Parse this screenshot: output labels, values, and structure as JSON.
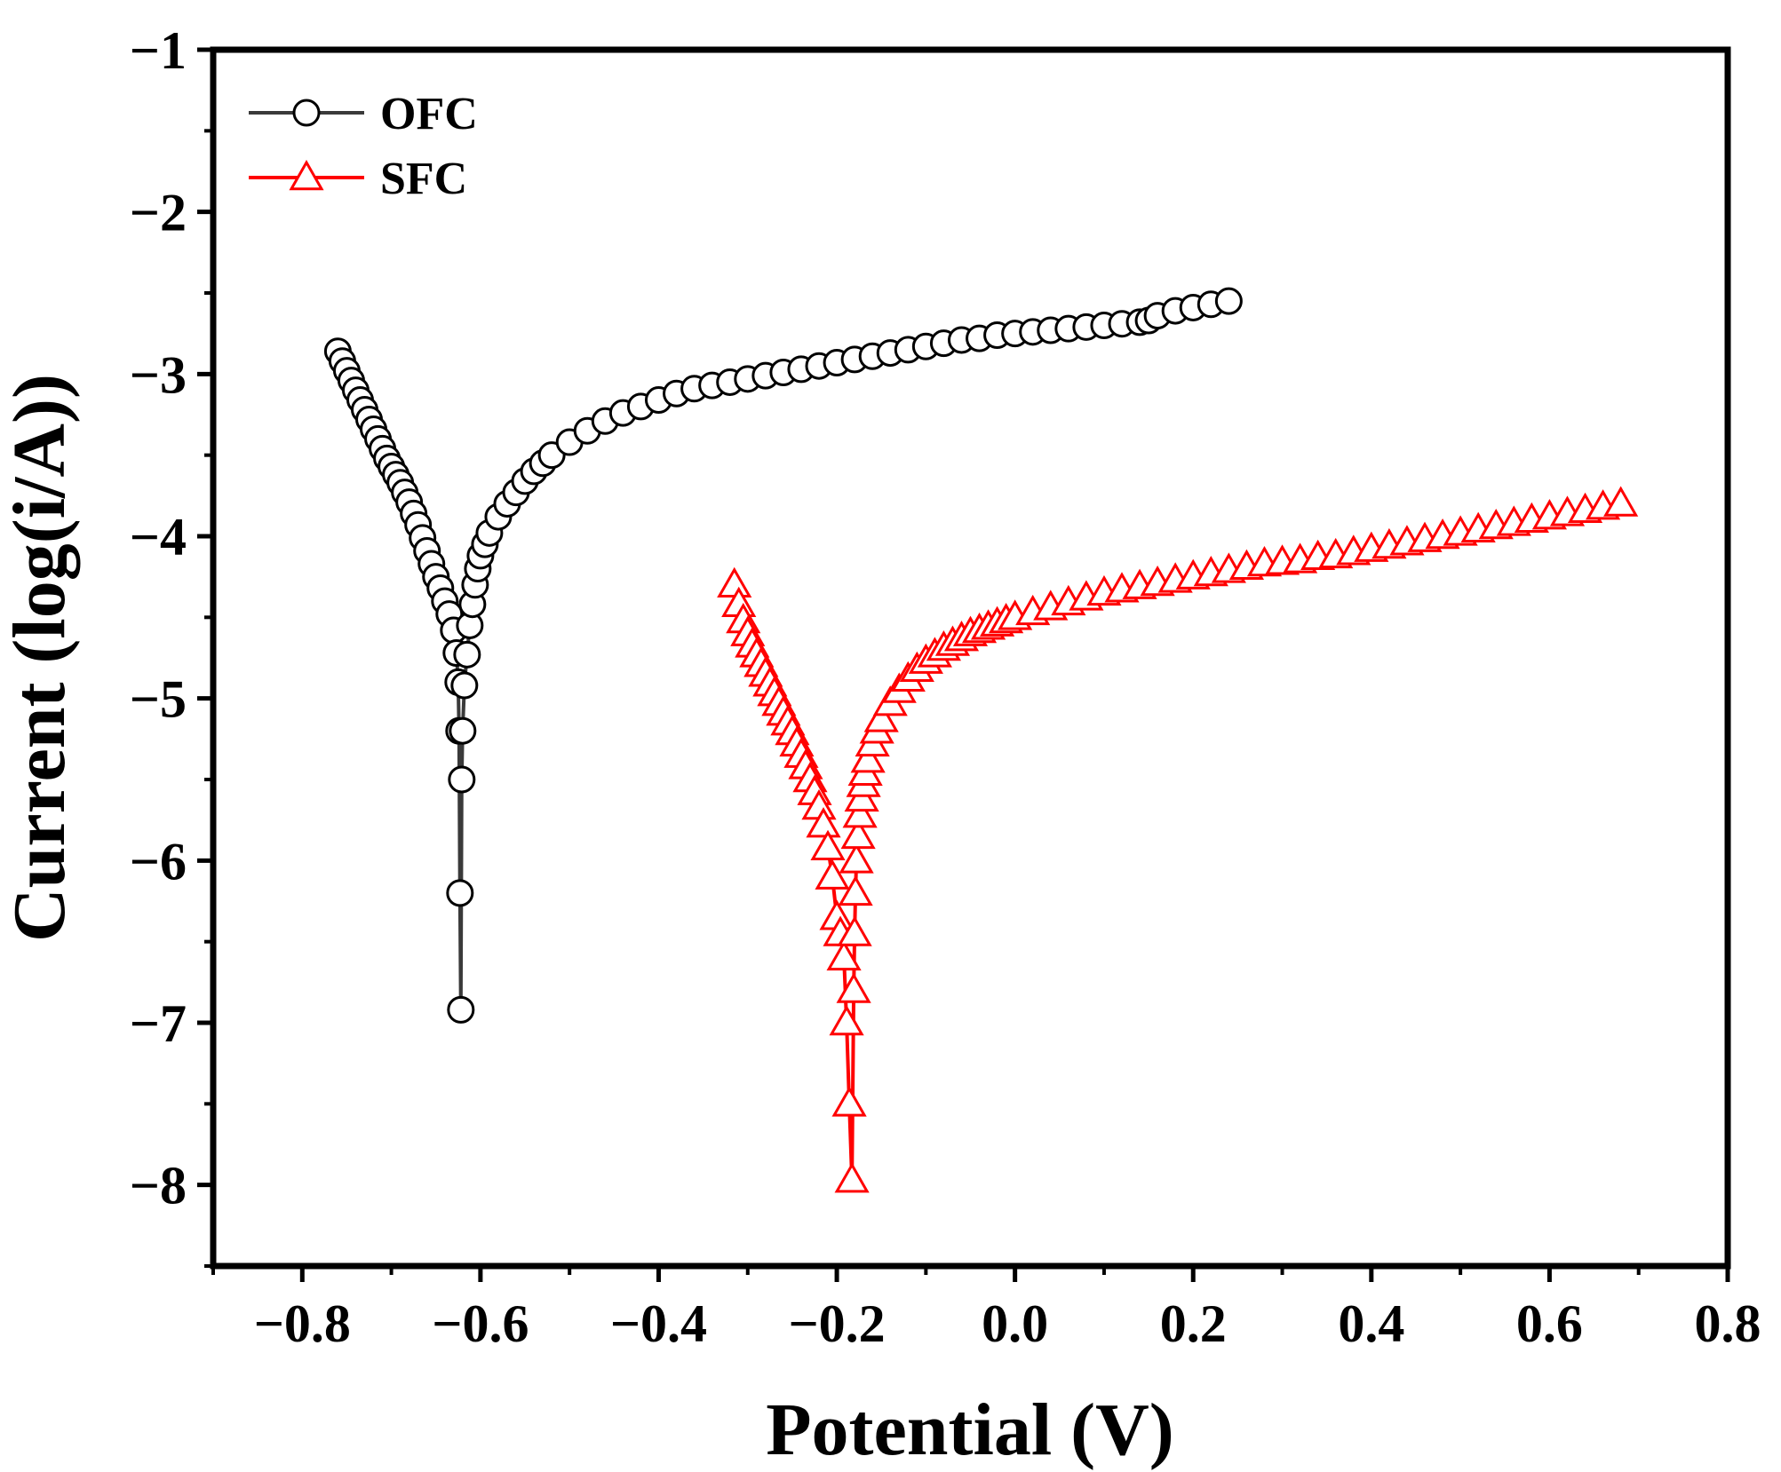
{
  "chart_data": {
    "type": "line",
    "title": "",
    "xlabel": "Potential (V)",
    "ylabel": "Current (log(i/A))",
    "xlim": [
      -0.9,
      0.8
    ],
    "ylim": [
      -8.5,
      -1
    ],
    "xticks": [
      -0.8,
      -0.6,
      -0.4,
      -0.2,
      0.0,
      0.2,
      0.4,
      0.6,
      0.8
    ],
    "xtick_labels": [
      "−0.8",
      "−0.6",
      "−0.4",
      "−0.2",
      "0.0",
      "0.2",
      "0.4",
      "0.6",
      "0.8"
    ],
    "yticks": [
      -8,
      -7,
      -6,
      -5,
      -4,
      -3,
      -2,
      -1
    ],
    "ytick_labels": [
      "−8",
      "−7",
      "−6",
      "−5",
      "−4",
      "−3",
      "−2",
      "−1"
    ],
    "legend_position": "top-left",
    "series": [
      {
        "name": "OFC",
        "color": "#000000",
        "line_color": "#3a3a3a",
        "marker": "circle",
        "x": [
          -0.76,
          -0.755,
          -0.75,
          -0.745,
          -0.74,
          -0.735,
          -0.73,
          -0.725,
          -0.72,
          -0.715,
          -0.71,
          -0.705,
          -0.7,
          -0.695,
          -0.69,
          -0.685,
          -0.68,
          -0.675,
          -0.67,
          -0.665,
          -0.66,
          -0.655,
          -0.65,
          -0.645,
          -0.64,
          -0.635,
          -0.63,
          -0.627,
          -0.625,
          -0.624,
          -0.623,
          -0.622,
          -0.621,
          -0.62,
          -0.618,
          -0.615,
          -0.612,
          -0.609,
          -0.606,
          -0.603,
          -0.6,
          -0.595,
          -0.59,
          -0.58,
          -0.57,
          -0.56,
          -0.55,
          -0.54,
          -0.53,
          -0.52,
          -0.5,
          -0.48,
          -0.46,
          -0.44,
          -0.42,
          -0.4,
          -0.38,
          -0.36,
          -0.34,
          -0.32,
          -0.3,
          -0.28,
          -0.26,
          -0.24,
          -0.22,
          -0.2,
          -0.18,
          -0.16,
          -0.14,
          -0.12,
          -0.1,
          -0.08,
          -0.06,
          -0.04,
          -0.02,
          0.0,
          0.02,
          0.04,
          0.06,
          0.08,
          0.1,
          0.12,
          0.14,
          0.15,
          0.16,
          0.18,
          0.2,
          0.22,
          0.24
        ],
        "y": [
          -2.86,
          -2.92,
          -2.98,
          -3.04,
          -3.1,
          -3.16,
          -3.22,
          -3.28,
          -3.34,
          -3.4,
          -3.46,
          -3.52,
          -3.57,
          -3.62,
          -3.67,
          -3.73,
          -3.79,
          -3.86,
          -3.93,
          -4.01,
          -4.09,
          -4.17,
          -4.25,
          -4.32,
          -4.4,
          -4.48,
          -4.58,
          -4.72,
          -4.9,
          -5.2,
          -6.2,
          -6.92,
          -5.5,
          -5.2,
          -4.92,
          -4.73,
          -4.55,
          -4.42,
          -4.3,
          -4.2,
          -4.12,
          -4.05,
          -3.98,
          -3.88,
          -3.8,
          -3.73,
          -3.66,
          -3.6,
          -3.55,
          -3.5,
          -3.42,
          -3.35,
          -3.29,
          -3.24,
          -3.2,
          -3.16,
          -3.12,
          -3.09,
          -3.07,
          -3.05,
          -3.03,
          -3.01,
          -2.99,
          -2.97,
          -2.95,
          -2.93,
          -2.91,
          -2.89,
          -2.87,
          -2.85,
          -2.83,
          -2.81,
          -2.79,
          -2.78,
          -2.76,
          -2.75,
          -2.74,
          -2.73,
          -2.72,
          -2.71,
          -2.7,
          -2.69,
          -2.68,
          -2.67,
          -2.64,
          -2.61,
          -2.59,
          -2.57,
          -2.55
        ]
      },
      {
        "name": "SFC",
        "color": "#ff0000",
        "line_color": "#ff0000",
        "marker": "triangle",
        "x": [
          -0.315,
          -0.31,
          -0.305,
          -0.3,
          -0.295,
          -0.29,
          -0.285,
          -0.28,
          -0.275,
          -0.27,
          -0.265,
          -0.26,
          -0.255,
          -0.25,
          -0.245,
          -0.24,
          -0.235,
          -0.23,
          -0.225,
          -0.22,
          -0.215,
          -0.21,
          -0.205,
          -0.2,
          -0.196,
          -0.192,
          -0.189,
          -0.186,
          -0.183,
          -0.181,
          -0.18,
          -0.179,
          -0.178,
          -0.176,
          -0.174,
          -0.172,
          -0.17,
          -0.168,
          -0.165,
          -0.16,
          -0.155,
          -0.15,
          -0.14,
          -0.13,
          -0.12,
          -0.11,
          -0.1,
          -0.09,
          -0.08,
          -0.07,
          -0.06,
          -0.05,
          -0.04,
          -0.03,
          -0.02,
          -0.01,
          0.0,
          0.02,
          0.04,
          0.06,
          0.08,
          0.1,
          0.12,
          0.14,
          0.16,
          0.18,
          0.2,
          0.22,
          0.24,
          0.26,
          0.28,
          0.3,
          0.32,
          0.34,
          0.36,
          0.38,
          0.4,
          0.42,
          0.44,
          0.46,
          0.48,
          0.5,
          0.52,
          0.54,
          0.56,
          0.58,
          0.6,
          0.62,
          0.64,
          0.66,
          0.68
        ],
        "y": [
          -4.3,
          -4.42,
          -4.52,
          -4.6,
          -4.67,
          -4.73,
          -4.79,
          -4.85,
          -4.91,
          -4.97,
          -5.03,
          -5.09,
          -5.15,
          -5.21,
          -5.28,
          -5.35,
          -5.42,
          -5.5,
          -5.58,
          -5.67,
          -5.78,
          -5.92,
          -6.1,
          -6.35,
          -6.45,
          -6.6,
          -7.0,
          -7.5,
          -7.97,
          -6.8,
          -6.45,
          -6.2,
          -6.0,
          -5.85,
          -5.72,
          -5.62,
          -5.53,
          -5.46,
          -5.38,
          -5.28,
          -5.2,
          -5.13,
          -5.03,
          -4.95,
          -4.88,
          -4.82,
          -4.77,
          -4.73,
          -4.69,
          -4.66,
          -4.63,
          -4.6,
          -4.58,
          -4.56,
          -4.54,
          -4.52,
          -4.5,
          -4.47,
          -4.44,
          -4.41,
          -4.38,
          -4.35,
          -4.33,
          -4.31,
          -4.29,
          -4.27,
          -4.25,
          -4.23,
          -4.21,
          -4.19,
          -4.17,
          -4.16,
          -4.15,
          -4.13,
          -4.12,
          -4.1,
          -4.08,
          -4.06,
          -4.04,
          -4.02,
          -4.0,
          -3.98,
          -3.96,
          -3.94,
          -3.92,
          -3.9,
          -3.88,
          -3.86,
          -3.84,
          -3.82,
          -3.8
        ]
      }
    ]
  }
}
